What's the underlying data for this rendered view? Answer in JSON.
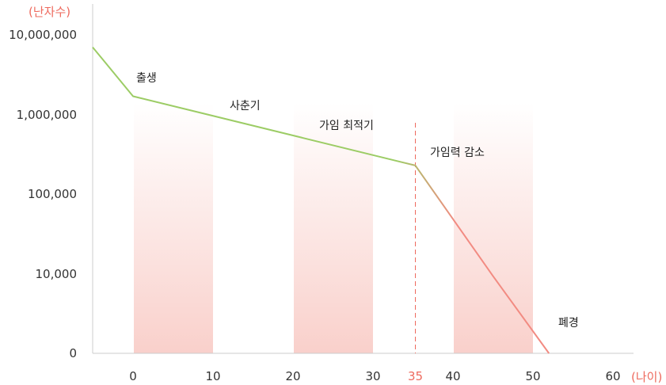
{
  "chart_data": {
    "type": "line",
    "ylabel": "(난자수)",
    "xlabel": "(나이)",
    "y_scale": "log",
    "x_ticks": [
      0,
      10,
      20,
      30,
      35,
      40,
      50,
      60
    ],
    "x_tick_labels": [
      "0",
      "10",
      "20",
      "30",
      "35",
      "40",
      "50",
      "60"
    ],
    "highlighted_x_tick": "35",
    "y_ticks": [
      1,
      10000,
      100000,
      1000000,
      10000000
    ],
    "y_tick_labels": [
      "0",
      "10,000",
      "100,000",
      "1,000,000",
      "10,000,000"
    ],
    "series": [
      {
        "x": [
          -5,
          0,
          35,
          45,
          52
        ],
        "y": [
          7000000,
          1700000,
          230000,
          8000,
          1
        ],
        "colors": [
          "#9ccc65",
          "#f28b82"
        ]
      }
    ],
    "shaded_ranges": [
      [
        0,
        10
      ],
      [
        20,
        30
      ],
      [
        40,
        50
      ]
    ],
    "reference_line_x": 35,
    "annotations": [
      {
        "text": "출생",
        "x": 0,
        "y": 2500000
      },
      {
        "text": "사춘기",
        "x": 12,
        "y": 1300000
      },
      {
        "text": "가임 최적기",
        "x": 23,
        "y": 700000
      },
      {
        "text": "가임력 감소",
        "x": 37,
        "y": 330000
      },
      {
        "text": "폐경",
        "x": 53,
        "y": 3
      }
    ],
    "colors": {
      "axis": "#cccccc",
      "shade": "#f9d0cb",
      "reference_line": "#ee6a5e",
      "accent_text": "#ee6a5e"
    }
  }
}
